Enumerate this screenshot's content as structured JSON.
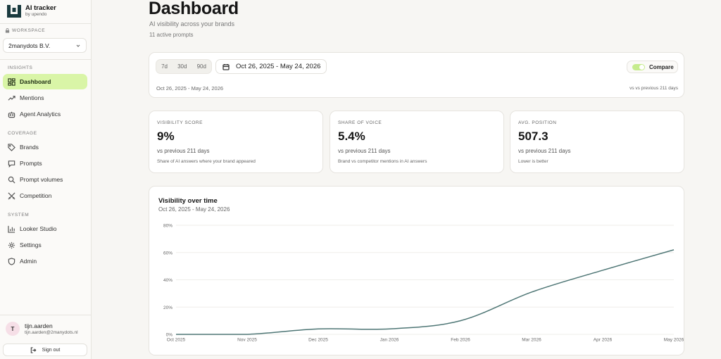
{
  "brand": {
    "title": "AI tracker",
    "subtitle": "by upendo"
  },
  "workspace": {
    "label": "WORKSPACE",
    "selected": "2manydots B.V."
  },
  "sidebar": {
    "sections": [
      {
        "label": "INSIGHTS"
      },
      {
        "label": "COVERAGE"
      },
      {
        "label": "SYSTEM"
      }
    ],
    "items": [
      {
        "label": "Dashboard",
        "icon": "dashboard-icon"
      },
      {
        "label": "Mentions",
        "icon": "trend-icon"
      },
      {
        "label": "Agent Analytics",
        "icon": "bot-icon"
      },
      {
        "label": "Brands",
        "icon": "tag-icon"
      },
      {
        "label": "Prompts",
        "icon": "chat-icon"
      },
      {
        "label": "Prompt volumes",
        "icon": "search-icon"
      },
      {
        "label": "Competition",
        "icon": "swords-icon"
      },
      {
        "label": "Looker Studio",
        "icon": "bar-chart-icon"
      },
      {
        "label": "Settings",
        "icon": "gear-icon"
      },
      {
        "label": "Admin",
        "icon": "shield-icon"
      }
    ],
    "active_color": "#d9f5a7"
  },
  "user": {
    "initial": "T",
    "name": "tijn.aarden",
    "email": "tijn.aarden@2manydots.nl",
    "signout": "Sign out"
  },
  "header": {
    "title": "Dashboard",
    "subtitle": "AI visibility across your brands",
    "count": "11 active prompts"
  },
  "filters": {
    "ranges": [
      "7d",
      "30d",
      "90d"
    ],
    "date_range": "Oct 26, 2025 - May 24, 2026",
    "compare_label": "Compare",
    "compare_on": true,
    "range_text": "Oct 26, 2025 - May 24, 2026",
    "compare_text": "vs vs previous 211 days"
  },
  "kpis": [
    {
      "label": "VISIBILITY SCORE",
      "value": "9%",
      "compare": "vs previous 211 days",
      "desc": "Share of AI answers where your brand appeared"
    },
    {
      "label": "SHARE OF VOICE",
      "value": "5.4%",
      "compare": "vs previous 211 days",
      "desc": "Brand vs competitor mentions in AI answers"
    },
    {
      "label": "AVG. POSITION",
      "value": "507.3",
      "compare": "vs previous 211 days",
      "desc": "Lower is better"
    }
  ],
  "chart_data": {
    "type": "line",
    "title": "Visibility over time",
    "subtitle": "Oct 26, 2025 - May 24, 2026",
    "x": [
      "Oct 2025",
      "Nov 2025",
      "Dec 2025",
      "Jan 2026",
      "Feb 2026",
      "Mar 2026",
      "Apr 2026",
      "May 2026"
    ],
    "y_ticks": [
      "0%",
      "20%",
      "40%",
      "60%",
      "80%"
    ],
    "ylim": [
      0,
      80
    ],
    "series": [
      {
        "values": [
          0,
          0,
          4,
          4,
          10,
          31,
          47,
          62
        ]
      }
    ],
    "grid": true,
    "line_color": "#4e7675"
  }
}
